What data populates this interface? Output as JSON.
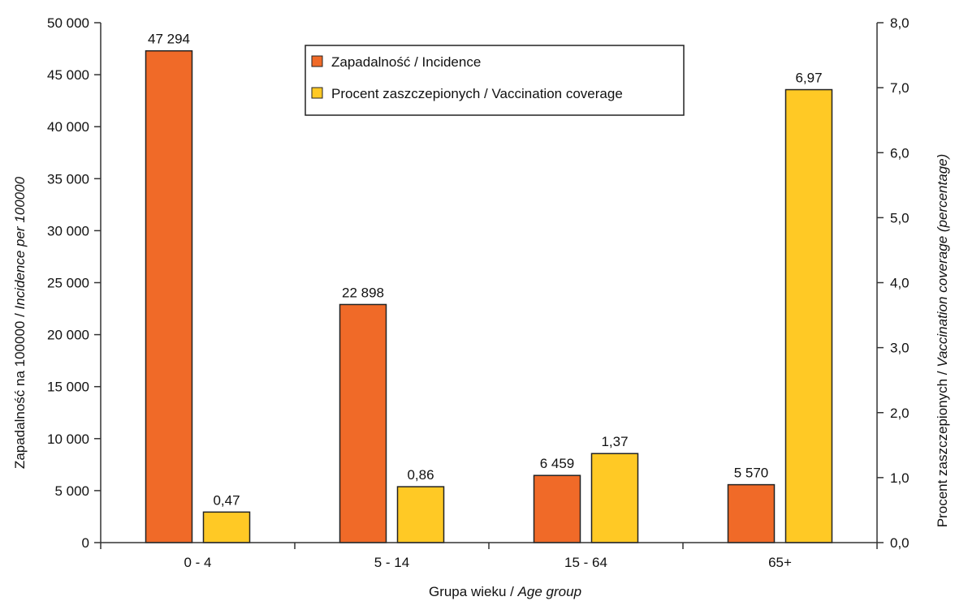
{
  "chart_data": {
    "type": "bar",
    "categories": [
      "0 - 4",
      "5 - 14",
      "15 - 64",
      "65+"
    ],
    "series": [
      {
        "name": "Zapadalność / Incidence",
        "axis": "left",
        "color": "#F06A28",
        "values": [
          47294,
          22898,
          6459,
          5570
        ],
        "labels": [
          "47 294",
          "22 898",
          "6 459",
          "5 570"
        ]
      },
      {
        "name": "Procent zaszczepionych / Vaccination coverage",
        "axis": "right",
        "color": "#FFC925",
        "values": [
          0.47,
          0.86,
          1.37,
          6.97
        ],
        "labels": [
          "0,47",
          "0,86",
          "1,37",
          "6,97"
        ]
      }
    ],
    "y_left": {
      "label_plain": "Zapadalność na 100000 / ",
      "label_italic": "Incidence per 100000",
      "ylim": [
        0,
        50000
      ],
      "ticks": [
        0,
        5000,
        10000,
        15000,
        20000,
        25000,
        30000,
        35000,
        40000,
        45000,
        50000
      ],
      "tick_labels": [
        "0",
        "5 000",
        "10 000",
        "15 000",
        "20 000",
        "25 000",
        "30 000",
        "35 000",
        "40 000",
        "45 000",
        "50 000"
      ]
    },
    "y_right": {
      "label_plain": "Procent zaszczepionych / ",
      "label_italic": "Vaccination coverage (percentage)",
      "ylim": [
        0,
        8
      ],
      "ticks": [
        0,
        1,
        2,
        3,
        4,
        5,
        6,
        7,
        8
      ],
      "tick_labels": [
        "0,0",
        "1,0",
        "2,0",
        "3,0",
        "4,0",
        "5,0",
        "6,0",
        "7,0",
        "8,0"
      ]
    },
    "xlabel_plain": "Grupa wieku / ",
    "xlabel_italic": "Age group",
    "legend_position": "top-center",
    "grid": false
  }
}
